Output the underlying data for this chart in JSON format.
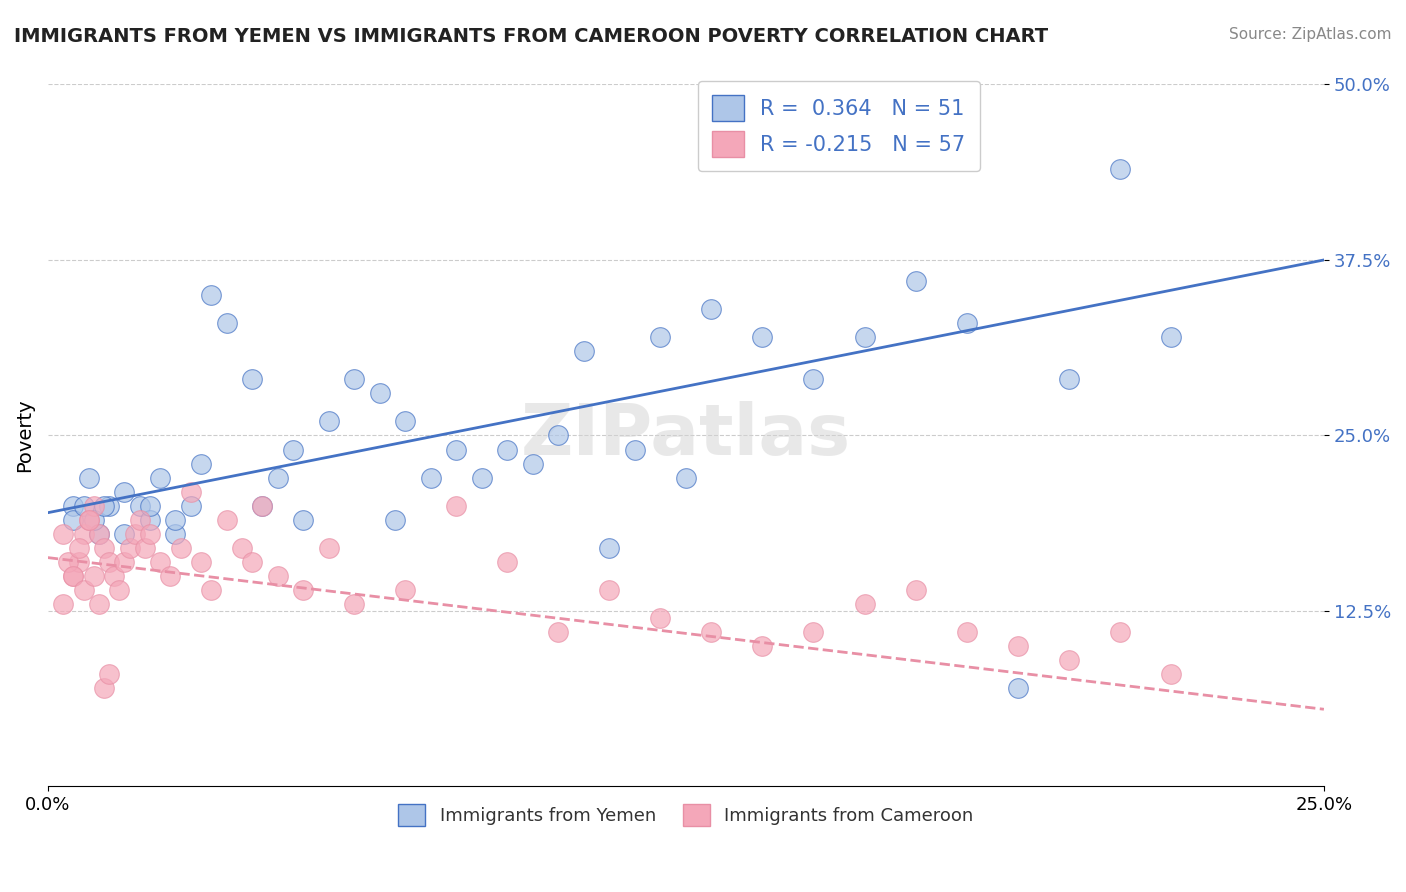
{
  "title": "IMMIGRANTS FROM YEMEN VS IMMIGRANTS FROM CAMEROON POVERTY CORRELATION CHART",
  "source": "Source: ZipAtlas.com",
  "xlabel_ticks": [
    "0.0%",
    "25.0%"
  ],
  "ylabel_ticks": [
    "12.5%",
    "25.0%",
    "37.5%",
    "50.0%"
  ],
  "ylabel_label": "Poverty",
  "legend_entries": [
    {
      "label": "Immigrants from Yemen",
      "color": "#aec6e8",
      "R": 0.364,
      "N": 51
    },
    {
      "label": "Immigrants from Cameroon",
      "color": "#f4a7b9",
      "R": -0.215,
      "N": 57
    }
  ],
  "watermark": "ZIPatlas",
  "xlim": [
    0.0,
    0.25
  ],
  "ylim": [
    0.0,
    0.5
  ],
  "blue_color": "#5b9bd5",
  "pink_color": "#f4a7b9",
  "blue_line_color": "#4472c4",
  "pink_line_color": "#f48fb1",
  "scatter_blue_color": "#aec6e8",
  "scatter_pink_color": "#f4a7b9",
  "yemen_scatter_x": [
    0.005,
    0.008,
    0.01,
    0.012,
    0.015,
    0.018,
    0.02,
    0.022,
    0.025,
    0.028,
    0.03,
    0.032,
    0.035,
    0.04,
    0.042,
    0.045,
    0.048,
    0.05,
    0.055,
    0.06,
    0.065,
    0.068,
    0.07,
    0.075,
    0.08,
    0.085,
    0.09,
    0.095,
    0.1,
    0.105,
    0.11,
    0.115,
    0.12,
    0.125,
    0.13,
    0.14,
    0.15,
    0.16,
    0.17,
    0.18,
    0.19,
    0.2,
    0.21,
    0.22,
    0.005,
    0.007,
    0.009,
    0.011,
    0.015,
    0.02,
    0.025
  ],
  "yemen_scatter_y": [
    0.2,
    0.22,
    0.18,
    0.2,
    0.21,
    0.2,
    0.19,
    0.22,
    0.18,
    0.2,
    0.23,
    0.35,
    0.33,
    0.29,
    0.2,
    0.22,
    0.24,
    0.19,
    0.26,
    0.29,
    0.28,
    0.19,
    0.26,
    0.22,
    0.24,
    0.22,
    0.24,
    0.23,
    0.25,
    0.31,
    0.17,
    0.24,
    0.32,
    0.22,
    0.34,
    0.32,
    0.29,
    0.32,
    0.36,
    0.33,
    0.07,
    0.29,
    0.44,
    0.32,
    0.19,
    0.2,
    0.19,
    0.2,
    0.18,
    0.2,
    0.19
  ],
  "cameroon_scatter_x": [
    0.003,
    0.005,
    0.006,
    0.007,
    0.008,
    0.009,
    0.01,
    0.011,
    0.012,
    0.013,
    0.014,
    0.015,
    0.016,
    0.017,
    0.018,
    0.019,
    0.02,
    0.022,
    0.024,
    0.026,
    0.028,
    0.03,
    0.032,
    0.035,
    0.038,
    0.04,
    0.042,
    0.045,
    0.05,
    0.055,
    0.06,
    0.07,
    0.08,
    0.09,
    0.1,
    0.11,
    0.12,
    0.13,
    0.14,
    0.15,
    0.16,
    0.17,
    0.18,
    0.19,
    0.2,
    0.21,
    0.003,
    0.004,
    0.005,
    0.006,
    0.007,
    0.008,
    0.009,
    0.01,
    0.011,
    0.012,
    0.22
  ],
  "cameroon_scatter_y": [
    0.13,
    0.15,
    0.16,
    0.18,
    0.19,
    0.2,
    0.18,
    0.17,
    0.16,
    0.15,
    0.14,
    0.16,
    0.17,
    0.18,
    0.19,
    0.17,
    0.18,
    0.16,
    0.15,
    0.17,
    0.21,
    0.16,
    0.14,
    0.19,
    0.17,
    0.16,
    0.2,
    0.15,
    0.14,
    0.17,
    0.13,
    0.14,
    0.2,
    0.16,
    0.11,
    0.14,
    0.12,
    0.11,
    0.1,
    0.11,
    0.13,
    0.14,
    0.11,
    0.1,
    0.09,
    0.11,
    0.18,
    0.16,
    0.15,
    0.17,
    0.14,
    0.19,
    0.15,
    0.13,
    0.07,
    0.08,
    0.08
  ]
}
